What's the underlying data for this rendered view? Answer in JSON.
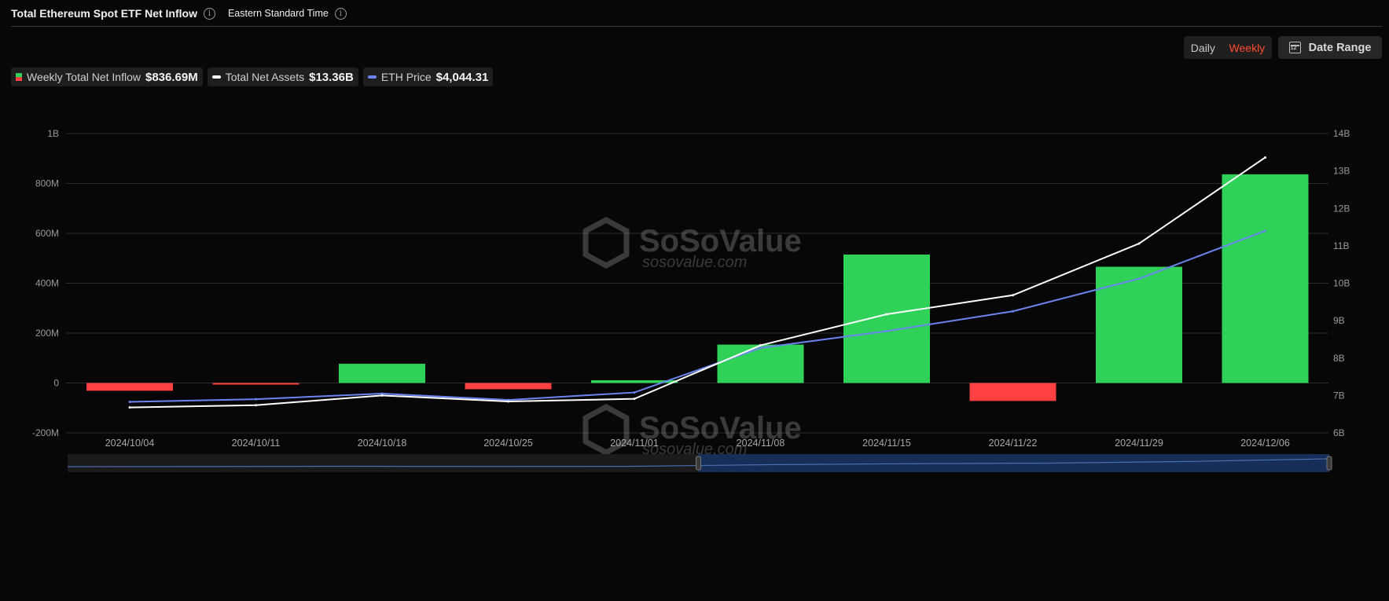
{
  "header": {
    "title": "Total Ethereum Spot ETF Net Inflow",
    "timezone": "Eastern Standard Time"
  },
  "controls": {
    "daily_label": "Daily",
    "weekly_label": "Weekly",
    "date_range_label": "Date Range",
    "active_color": "#ff4a2f"
  },
  "legend": [
    {
      "label": "Weekly Total Net Inflow",
      "value": "$836.69M",
      "swatch": "bar"
    },
    {
      "label": "Total Net Assets",
      "value": "$13.36B",
      "swatch": "#ffffff"
    },
    {
      "label": "ETH Price",
      "value": "$4,044.31",
      "swatch": "#6b84f0"
    }
  ],
  "watermark": {
    "brand": "SoSoValue",
    "url": "sosovalue.com"
  },
  "chart_data": {
    "type": "bar",
    "categories": [
      "2024/10/04",
      "2024/10/11",
      "2024/10/18",
      "2024/10/25",
      "2024/11/01",
      "2024/11/08",
      "2024/11/15",
      "2024/11/22",
      "2024/11/29",
      "2024/12/06"
    ],
    "series": [
      {
        "name": "Weekly Total Net Inflow",
        "type": "bar",
        "axis": "left",
        "values": [
          -31,
          -4,
          77,
          -25,
          11,
          154,
          515,
          -72,
          466,
          836.69
        ],
        "positive_color": "#2fd158",
        "negative_color": "#ff4040"
      },
      {
        "name": "Total Net Assets",
        "type": "line",
        "axis": "right",
        "color": "#ffffff",
        "values": [
          6.68,
          6.74,
          7.0,
          6.84,
          6.91,
          8.34,
          9.17,
          9.68,
          11.06,
          13.36
        ]
      },
      {
        "name": "ETH Price",
        "type": "line",
        "axis": "right",
        "color": "#6b84f0",
        "values": [
          6.83,
          6.9,
          7.05,
          6.88,
          7.08,
          8.27,
          8.72,
          9.25,
          10.12,
          11.4
        ]
      }
    ],
    "left_axis": {
      "min": -200,
      "max": 1000,
      "ticks": [
        -200,
        0,
        200,
        400,
        600,
        800,
        1000
      ],
      "tick_labels": [
        "-200M",
        "0",
        "200M",
        "400M",
        "600M",
        "800M",
        "1B"
      ]
    },
    "right_axis": {
      "min": 6,
      "max": 14,
      "ticks": [
        6,
        7,
        8,
        9,
        10,
        11,
        12,
        13,
        14
      ],
      "tick_labels": [
        "6B",
        "7B",
        "8B",
        "9B",
        "10B",
        "11B",
        "12B",
        "13B",
        "14B"
      ]
    },
    "grid": true,
    "range_selector": {
      "start_fraction": 0.5,
      "end_fraction": 1.0
    }
  }
}
